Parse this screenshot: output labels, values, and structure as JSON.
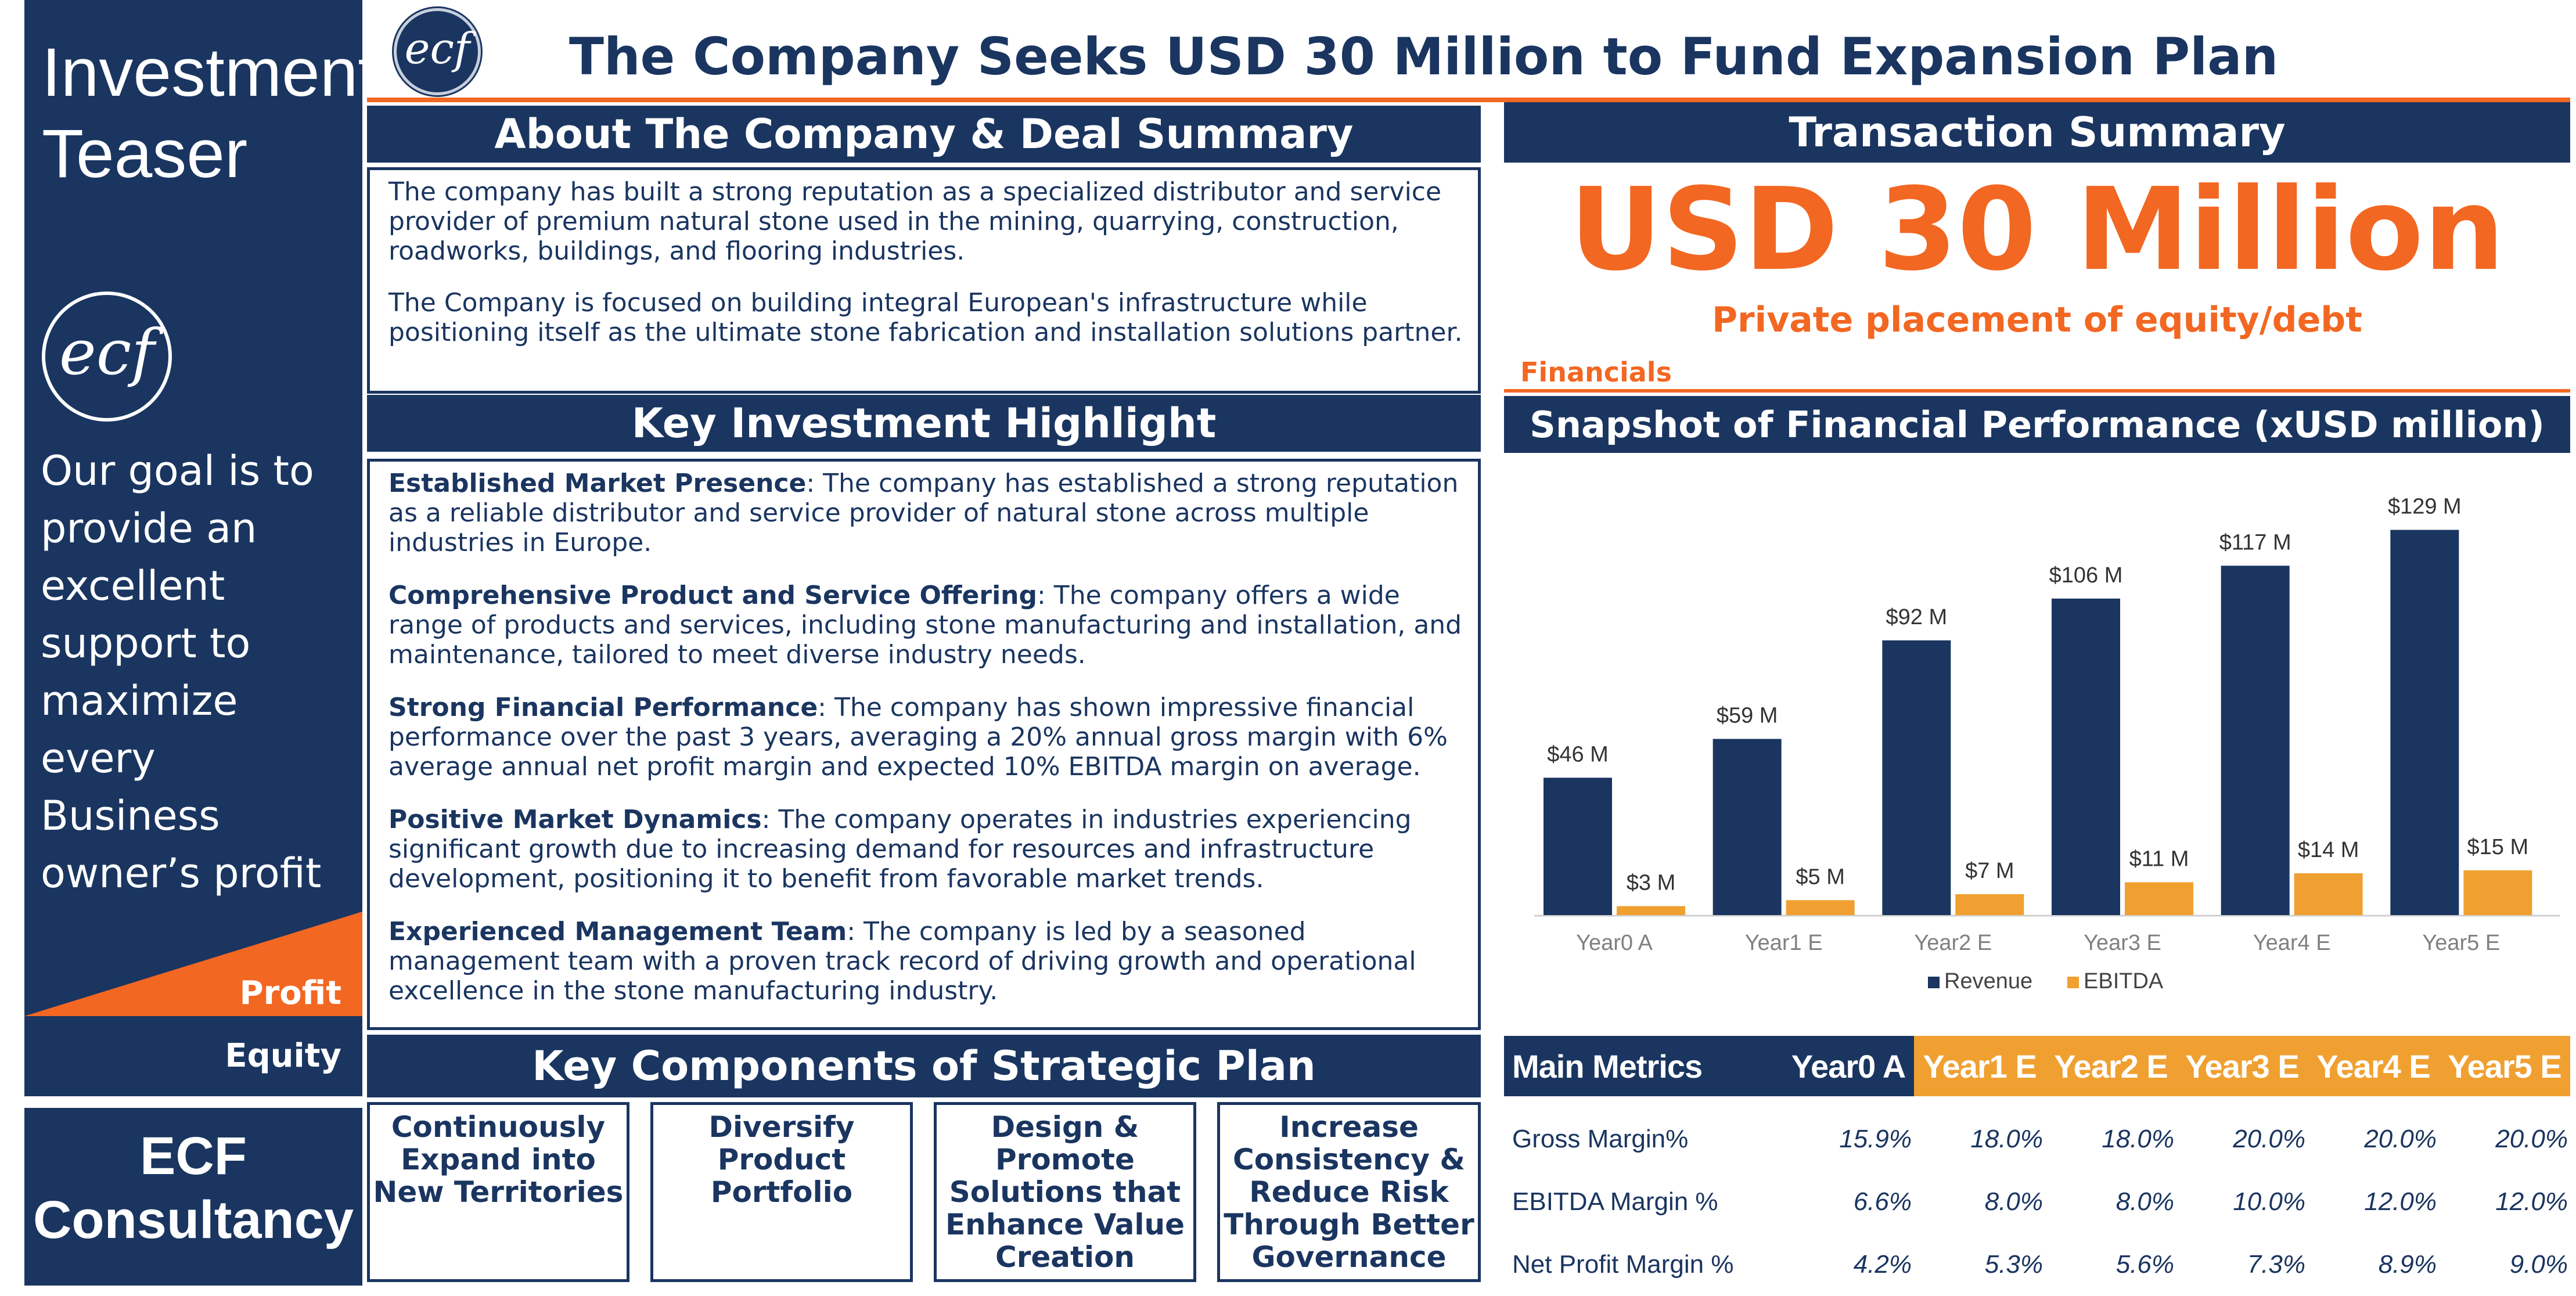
{
  "sidebar": {
    "title_line1": "Investment",
    "title_line2": "Teaser",
    "logo_text": "ecf",
    "goal_lines": [
      "Our goal is to",
      "provide an",
      "excellent",
      "support to",
      "maximize every",
      "Business",
      "owner’s profit"
    ],
    "profit_label": "Profit",
    "equity_label": "Equity",
    "company_line1": "ECF",
    "company_line2": "Consultancy"
  },
  "header": {
    "logo_text": "ecf",
    "title": "The Company Seeks USD 30 Million to Fund Expansion Plan"
  },
  "about": {
    "heading": "About The Company & Deal Summary",
    "paragraphs": [
      "The company has built a strong reputation as a specialized distributor and service provider of premium natural stone used in the mining, quarrying, construction, roadworks, buildings, and flooring industries.",
      "The Company is focused on building integral European's infrastructure while positioning itself as the ultimate stone fabrication and installation solutions partner."
    ]
  },
  "highlights": {
    "heading": "Key Investment Highlight",
    "items": [
      {
        "title": "Established Market Presence",
        "text": ": The company has established a strong reputation as a reliable distributor and service provider of natural stone across multiple industries in Europe."
      },
      {
        "title": "Comprehensive Product and Service Offering",
        "text": ": The company offers a wide range of products and services, including stone manufacturing and installation, and maintenance, tailored to meet diverse industry needs."
      },
      {
        "title": "Strong Financial Performance",
        "text": ": The company has shown impressive financial performance over the past 3 years, averaging a 20% annual gross margin with 6% average annual net profit margin and expected 10% EBITDA margin on average."
      },
      {
        "title": "Positive Market Dynamics",
        "text": ": The company operates in industries experiencing significant growth due to increasing demand for resources and infrastructure development, positioning it to benefit from favorable market trends."
      },
      {
        "title": "Experienced Management Team",
        "text": ": The company is led by a seasoned management team with a proven track record of driving growth and operational excellence in the stone manufacturing industry."
      }
    ]
  },
  "strategic": {
    "heading": "Key Components of Strategic Plan",
    "components": [
      "Continuously Expand into New Territories",
      "Diversify Product Portfolio",
      "Design & Promote Solutions that Enhance Value Creation",
      "Increase Consistency & Reduce Risk Through Better Governance"
    ]
  },
  "transaction": {
    "heading": "Transaction Summary",
    "amount": "USD 30 Million",
    "subtitle": "Private placement of equity/debt",
    "financials_label": "Financials",
    "snapshot_heading": "Snapshot of Financial Performance (xUSD million)"
  },
  "chart_data": {
    "type": "bar",
    "categories": [
      "Year0 A",
      "Year1 E",
      "Year2 E",
      "Year3 E",
      "Year4 E",
      "Year5 E"
    ],
    "series": [
      {
        "name": "Revenue",
        "values": [
          46,
          59,
          92,
          106,
          117,
          129
        ],
        "labels": [
          "$46 M",
          "$59 M",
          "$92 M",
          "$106 M",
          "$117 M",
          "$129 M"
        ],
        "color": "#1a3560"
      },
      {
        "name": "EBITDA",
        "values": [
          3,
          5,
          7,
          11,
          14,
          15
        ],
        "labels": [
          "$3 M",
          "$5 M",
          "$7 M",
          "$11 M",
          "$14 M",
          "$15 M"
        ],
        "color": "#f0a030"
      }
    ],
    "title": "",
    "xlabel": "",
    "ylabel": "",
    "ylim": [
      0,
      140
    ],
    "grid": false,
    "legend": "bottom"
  },
  "metrics": {
    "header": [
      "Main Metrics",
      "Year0 A",
      "Year1 E",
      "Year2 E",
      "Year3 E",
      "Year4 E",
      "Year5 E"
    ],
    "rows": [
      {
        "label": "Gross Margin%",
        "values": [
          "15.9%",
          "18.0%",
          "18.0%",
          "20.0%",
          "20.0%",
          "20.0%"
        ]
      },
      {
        "label": "EBITDA Margin %",
        "values": [
          "6.6%",
          "8.0%",
          "8.0%",
          "10.0%",
          "12.0%",
          "12.0%"
        ]
      },
      {
        "label": "Net Profit Margin %",
        "values": [
          "4.2%",
          "5.3%",
          "5.6%",
          "7.3%",
          "8.9%",
          "9.0%"
        ]
      }
    ]
  },
  "colors": {
    "navy": "#1a3560",
    "orange": "#f26722",
    "ebitda": "#f0a030"
  }
}
